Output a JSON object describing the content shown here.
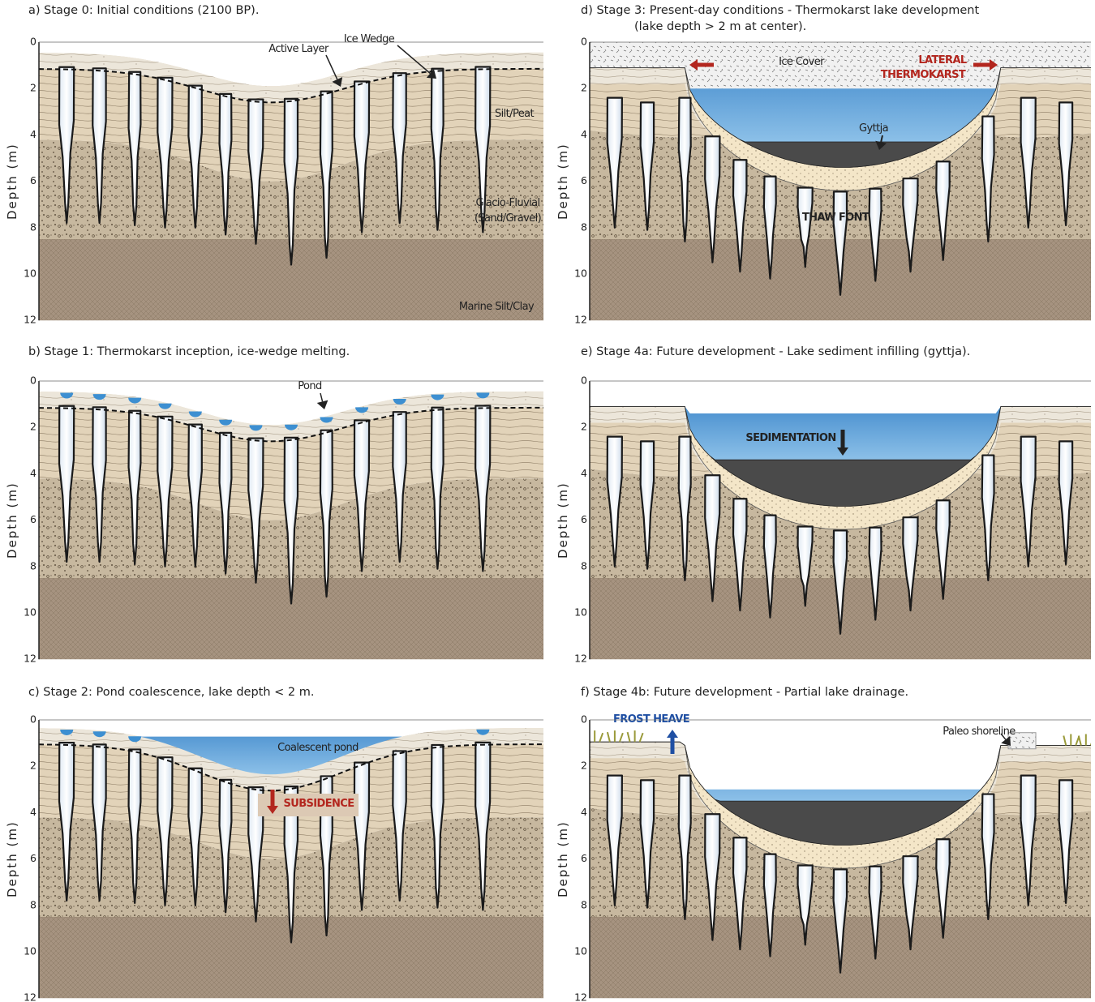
{
  "panels": [
    {
      "title": "a) Stage 0: Initial conditions (2100 BP).",
      "axis_label": "Depth (m)",
      "ticks": [
        0,
        2,
        4,
        6,
        8,
        10,
        12
      ],
      "labels": [
        "Active Layer",
        "Ice Wedge",
        "Silt/Peat",
        "Glacio-Fluvial",
        "(Sand/Gravel)",
        "Marine Silt/Clay"
      ]
    },
    {
      "title": "b) Stage 1: Thermokarst inception, ice-wedge melting.",
      "axis_label": "Depth (m)",
      "ticks": [
        0,
        2,
        4,
        6,
        8,
        10,
        12
      ],
      "labels": [
        "Pond"
      ]
    },
    {
      "title": "c) Stage 2: Pond coalescence, lake depth < 2 m.",
      "axis_label": "Depth (m)",
      "ticks": [
        0,
        2,
        4,
        6,
        8,
        10,
        12
      ],
      "labels": [
        "Coalescent pond",
        "SUBSIDENCE"
      ]
    },
    {
      "title": "d) Stage 3: Present-day conditions - Thermokarst lake development",
      "subtitle": "(lake depth > 2 m at center).",
      "axis_label": "Depth (m)",
      "ticks": [
        0,
        2,
        4,
        6,
        8,
        10,
        12
      ],
      "labels": [
        "Ice Cover",
        "LATERAL",
        "THERMOKARST",
        "Gyttja",
        "THAW FONT"
      ]
    },
    {
      "title": "e) Stage 4a: Future development - Lake sediment infilling (gyttja).",
      "axis_label": "Depth (m)",
      "ticks": [
        0,
        2,
        4,
        6,
        8,
        10,
        12
      ],
      "labels": [
        "SEDIMENTATION"
      ]
    },
    {
      "title": "f) Stage 4b: Future development - Partial lake drainage.",
      "axis_label": "Depth (m)",
      "ticks": [
        0,
        2,
        4,
        6,
        8,
        10,
        12
      ],
      "labels": [
        "FROST HEAVE",
        "Paleo shoreline"
      ]
    }
  ]
}
